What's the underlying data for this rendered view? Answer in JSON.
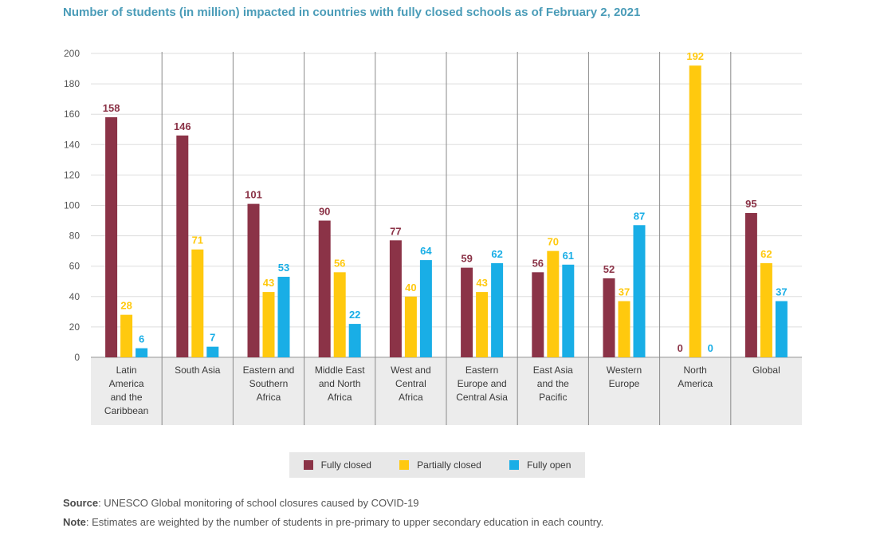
{
  "title": "Number of students (in million) impacted in countries with fully closed schools as of February 2, 2021",
  "chart_data": {
    "type": "bar",
    "title": "Number of students (in million) impacted in countries with fully closed schools as of February 2, 2021",
    "categories": [
      [
        "Latin",
        "America",
        "and the",
        "Caribbean"
      ],
      [
        "South Asia"
      ],
      [
        "Eastern and",
        "Southern",
        "Africa"
      ],
      [
        "Middle East",
        "and North",
        "Africa"
      ],
      [
        "West and",
        "Central",
        "Africa"
      ],
      [
        "Eastern",
        "Europe and",
        "Central Asia"
      ],
      [
        "East Asia",
        "and the",
        "Pacific"
      ],
      [
        "Western",
        "Europe"
      ],
      [
        "North",
        "America"
      ],
      [
        "Global"
      ]
    ],
    "series": [
      {
        "name": "Fully closed",
        "color": "#8b3347",
        "values": [
          158,
          146,
          101,
          90,
          77,
          59,
          56,
          52,
          0,
          95
        ]
      },
      {
        "name": "Partially closed",
        "color": "#ffc90e",
        "values": [
          28,
          71,
          43,
          56,
          40,
          43,
          70,
          37,
          192,
          62
        ]
      },
      {
        "name": "Fully open",
        "color": "#19aee6",
        "values": [
          6,
          7,
          53,
          22,
          64,
          62,
          61,
          87,
          0,
          37
        ]
      }
    ],
    "ylim": [
      0,
      200
    ],
    "yticks": [
      0,
      20,
      40,
      60,
      80,
      100,
      120,
      140,
      160,
      180,
      200
    ],
    "xlabel": "",
    "ylabel": "",
    "grid": true,
    "legend": "bottom"
  },
  "footnotes": {
    "source_label": "Source",
    "source_text": ": UNESCO Global monitoring of school closures caused by COVID-19",
    "note_label": "Note",
    "note_text": ": Estimates are weighted by the number of students in pre-primary to upper secondary education in each country."
  }
}
